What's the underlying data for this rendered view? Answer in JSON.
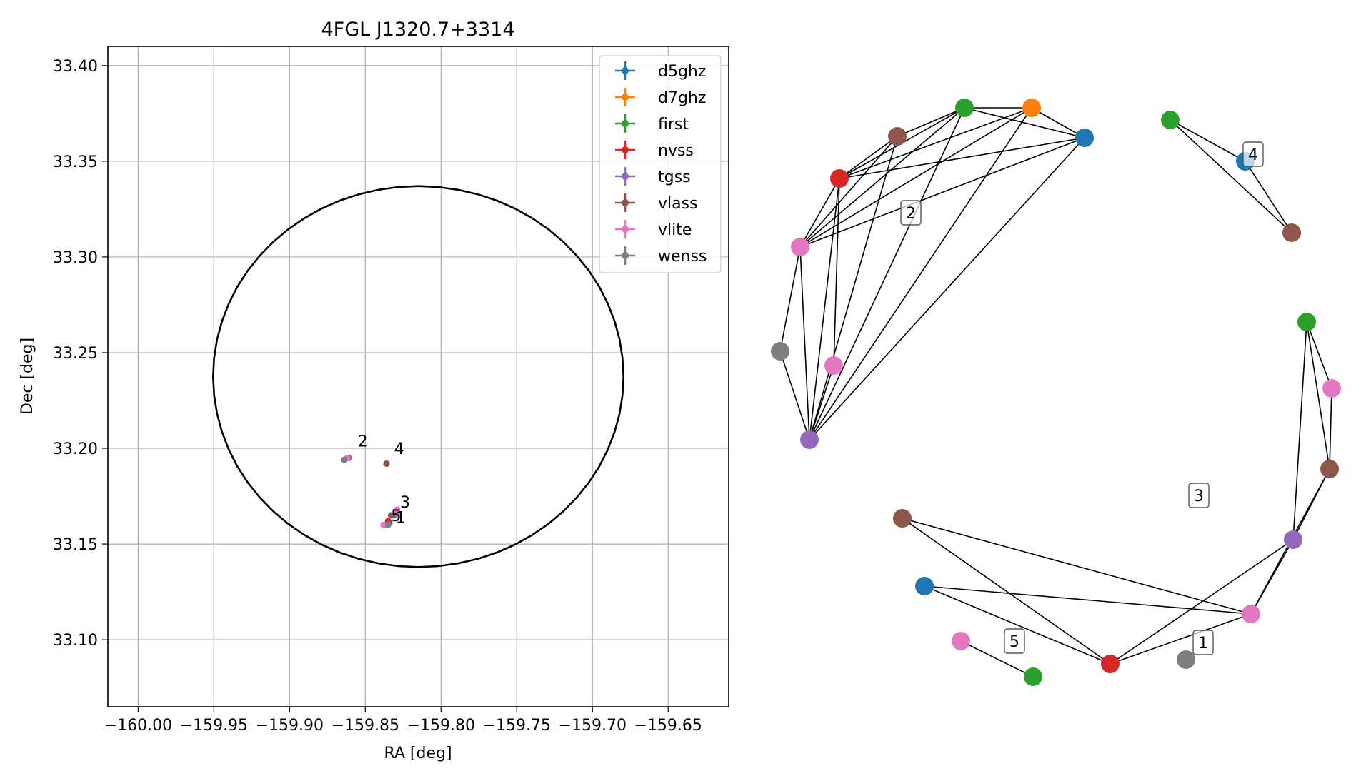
{
  "colors": {
    "d5ghz": "#1f77b4",
    "d7ghz": "#ff7f0e",
    "first": "#2ca02c",
    "nvss": "#d62728",
    "tgss": "#9467bd",
    "vlass": "#8c564b",
    "vlite": "#e377c2",
    "wenss": "#7f7f7f"
  },
  "chart_data": [
    {
      "type": "scatter",
      "title": "4FGL J1320.7+3314",
      "xlabel": "RA [deg]",
      "ylabel": "Dec [deg]",
      "xlim": [
        -160.02,
        -159.61
      ],
      "ylim": [
        33.065,
        33.41
      ],
      "xticks": [
        -160.0,
        -159.95,
        -159.9,
        -159.85,
        -159.8,
        -159.75,
        -159.7,
        -159.65
      ],
      "xtick_labels": [
        "−160.00",
        "−159.95",
        "−159.90",
        "−159.85",
        "−159.80",
        "−159.75",
        "−159.70",
        "−159.65"
      ],
      "yticks": [
        33.1,
        33.15,
        33.2,
        33.25,
        33.3,
        33.35,
        33.4
      ],
      "ytick_labels": [
        "33.10",
        "33.15",
        "33.20",
        "33.25",
        "33.30",
        "33.35",
        "33.40"
      ],
      "grid": true,
      "legend_position": "top-right",
      "ellipse": {
        "center_ra": -159.815,
        "center_dec": 33.2375,
        "semi_ra": 0.1355,
        "semi_dec": 0.0995
      },
      "series": [
        {
          "name": "d5ghz",
          "points": [
            [
              -159.862,
              33.195
            ],
            [
              -159.83,
              33.165
            ],
            [
              -159.836,
              33.192
            ]
          ]
        },
        {
          "name": "d7ghz",
          "points": [
            [
              -159.862,
              33.195
            ]
          ]
        },
        {
          "name": "first",
          "points": [
            [
              -159.862,
              33.195
            ],
            [
              -159.83,
              33.166
            ],
            [
              -159.836,
              33.192
            ],
            [
              -159.836,
              33.16
            ]
          ]
        },
        {
          "name": "nvss",
          "points": [
            [
              -159.861,
              33.195
            ],
            [
              -159.835,
              33.162
            ]
          ]
        },
        {
          "name": "tgss",
          "points": [
            [
              -159.861,
              33.195
            ],
            [
              -159.83,
              33.167
            ]
          ]
        },
        {
          "name": "vlass",
          "points": [
            [
              -159.862,
              33.195
            ],
            [
              -159.833,
              33.165
            ],
            [
              -159.836,
              33.192
            ],
            [
              -159.834,
              33.161
            ]
          ]
        },
        {
          "name": "vlite",
          "points": [
            [
              -159.862,
              33.195
            ],
            [
              -159.829,
              33.168
            ],
            [
              -159.828,
              33.165
            ],
            [
              -159.838,
              33.16
            ]
          ]
        },
        {
          "name": "wenss",
          "points": [
            [
              -159.864,
              33.194
            ],
            [
              -159.835,
              33.16
            ]
          ]
        }
      ],
      "annotations": [
        {
          "text": "2",
          "x": -159.855,
          "y": 33.201
        },
        {
          "text": "4",
          "x": -159.831,
          "y": 33.197
        },
        {
          "text": "3",
          "x": -159.827,
          "y": 33.169
        },
        {
          "text": "5",
          "x": -159.833,
          "y": 33.162
        },
        {
          "text": "1",
          "x": -159.83,
          "y": 33.161
        }
      ]
    },
    {
      "type": "network",
      "nodes": [
        {
          "id": "c2_d5ghz",
          "catalog": "d5ghz"
        },
        {
          "id": "c2_d7ghz",
          "catalog": "d7ghz"
        },
        {
          "id": "c2_first",
          "catalog": "first"
        },
        {
          "id": "c2_vlass",
          "catalog": "vlass"
        },
        {
          "id": "c2_nvss",
          "catalog": "nvss"
        },
        {
          "id": "c2_vlite1",
          "catalog": "vlite"
        },
        {
          "id": "c2_wenss",
          "catalog": "wenss"
        },
        {
          "id": "c2_vlite2",
          "catalog": "vlite"
        },
        {
          "id": "c2_tgss",
          "catalog": "tgss"
        },
        {
          "id": "c4_first",
          "catalog": "first"
        },
        {
          "id": "c4_d5ghz",
          "catalog": "d5ghz"
        },
        {
          "id": "c4_vlass",
          "catalog": "vlass"
        },
        {
          "id": "c3_first",
          "catalog": "first"
        },
        {
          "id": "c3_vlite",
          "catalog": "vlite"
        },
        {
          "id": "c3_vlass",
          "catalog": "vlass"
        },
        {
          "id": "c3_tgss",
          "catalog": "tgss"
        },
        {
          "id": "c1_vlite",
          "catalog": "vlite"
        },
        {
          "id": "c1_nvss",
          "catalog": "nvss"
        },
        {
          "id": "c1_vlass",
          "catalog": "vlass"
        },
        {
          "id": "c1_d5ghz",
          "catalog": "d5ghz"
        },
        {
          "id": "c1_wenss",
          "catalog": "wenss"
        },
        {
          "id": "c5_vlite",
          "catalog": "vlite"
        },
        {
          "id": "c5_first",
          "catalog": "first"
        }
      ],
      "edges": [
        [
          "c2_first",
          "c2_d7ghz"
        ],
        [
          "c2_first",
          "c2_d5ghz"
        ],
        [
          "c2_d7ghz",
          "c2_d5ghz"
        ],
        [
          "c2_first",
          "c2_nvss"
        ],
        [
          "c2_first",
          "c2_vlite1"
        ],
        [
          "c2_first",
          "c2_tgss"
        ],
        [
          "c2_first",
          "c2_vlass"
        ],
        [
          "c2_d7ghz",
          "c2_nvss"
        ],
        [
          "c2_d7ghz",
          "c2_vlite1"
        ],
        [
          "c2_d7ghz",
          "c2_tgss"
        ],
        [
          "c2_d5ghz",
          "c2_nvss"
        ],
        [
          "c2_d5ghz",
          "c2_vlite1"
        ],
        [
          "c2_d5ghz",
          "c2_tgss"
        ],
        [
          "c2_vlass",
          "c2_nvss"
        ],
        [
          "c2_vlass",
          "c2_vlite1"
        ],
        [
          "c2_vlass",
          "c2_tgss"
        ],
        [
          "c2_nvss",
          "c2_vlite1"
        ],
        [
          "c2_nvss",
          "c2_tgss"
        ],
        [
          "c2_nvss",
          "c2_vlite2"
        ],
        [
          "c2_vlite1",
          "c2_wenss"
        ],
        [
          "c2_vlite1",
          "c2_tgss"
        ],
        [
          "c2_wenss",
          "c2_tgss"
        ],
        [
          "c2_vlite2",
          "c2_tgss"
        ],
        [
          "c4_first",
          "c4_d5ghz"
        ],
        [
          "c4_first",
          "c4_vlass"
        ],
        [
          "c4_d5ghz",
          "c4_vlass"
        ],
        [
          "c3_first",
          "c3_vlite"
        ],
        [
          "c3_first",
          "c3_vlass"
        ],
        [
          "c3_first",
          "c3_tgss"
        ],
        [
          "c3_vlite",
          "c3_vlass"
        ],
        [
          "c3_vlass",
          "c3_tgss"
        ],
        [
          "c3_tgss",
          "c1_vlite"
        ],
        [
          "c3_tgss",
          "c1_nvss"
        ],
        [
          "c3_vlass",
          "c1_vlite"
        ],
        [
          "c1_vlass",
          "c1_vlite"
        ],
        [
          "c1_vlass",
          "c1_nvss"
        ],
        [
          "c1_d5ghz",
          "c1_vlite"
        ],
        [
          "c1_d5ghz",
          "c1_nvss"
        ],
        [
          "c1_nvss",
          "c1_vlite"
        ],
        [
          "c5_vlite",
          "c5_first"
        ]
      ],
      "cluster_labels": [
        {
          "text": "2"
        },
        {
          "text": "4"
        },
        {
          "text": "3"
        },
        {
          "text": "1"
        },
        {
          "text": "5"
        }
      ]
    }
  ]
}
